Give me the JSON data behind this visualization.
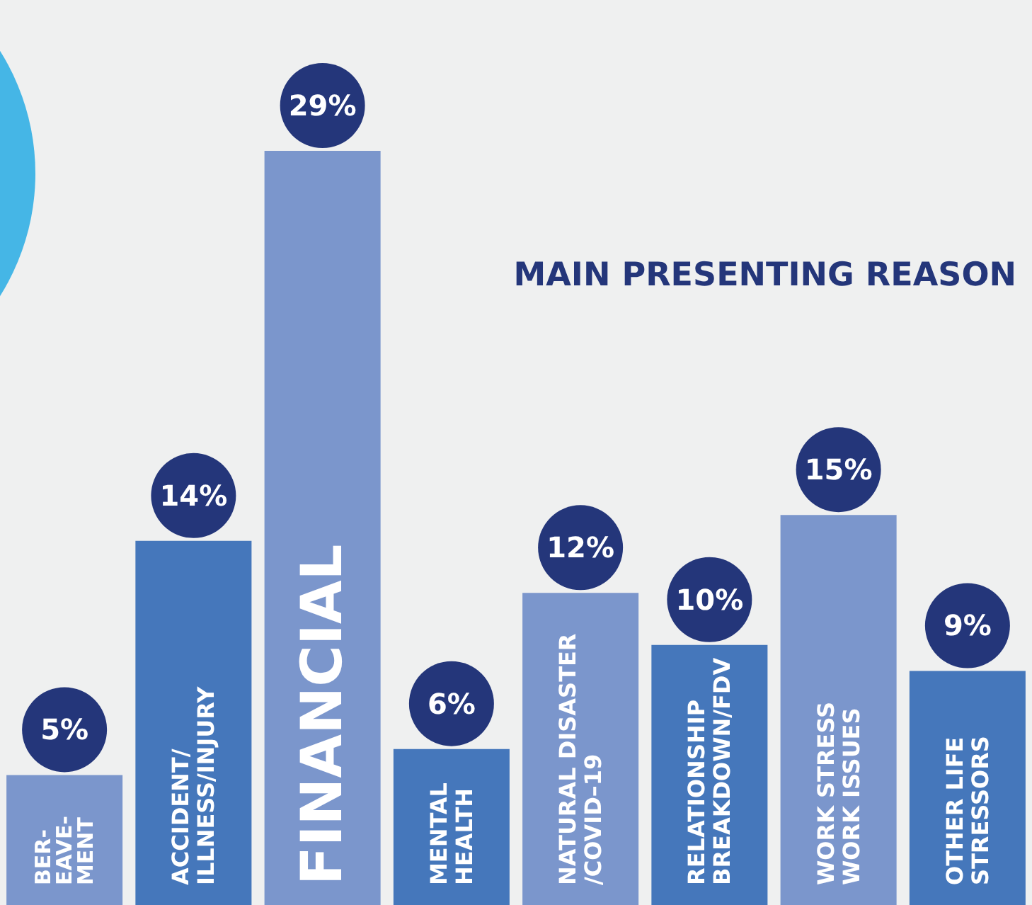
{
  "chart_data": {
    "type": "bar",
    "title": "MAIN PRESENTING REASON",
    "categories": [
      "BER-\nEAVE-\nMENT",
      "ACCIDENT/\nILLNESS/INJURY",
      "FINANCIAL",
      "MENTAL\nHEALTH",
      "NATURAL DISASTER\n/COVID–19",
      "RELATIONSHIP\nBREAKDOWN/FDV",
      "WORK STRESS\nWORK ISSUES",
      "OTHER LIFE\nSTRESSORS"
    ],
    "values": [
      5,
      14,
      29,
      6,
      12,
      10,
      15,
      9
    ],
    "value_labels": [
      "5%",
      "14%",
      "29%",
      "6%",
      "12%",
      "10%",
      "15%",
      "9%"
    ],
    "colors": [
      "#7b96cc",
      "#4577bb",
      "#7b96cc",
      "#4577bb",
      "#7b96cc",
      "#4577bb",
      "#7b96cc",
      "#4577bb"
    ],
    "tick_labels": "x"
  }
}
